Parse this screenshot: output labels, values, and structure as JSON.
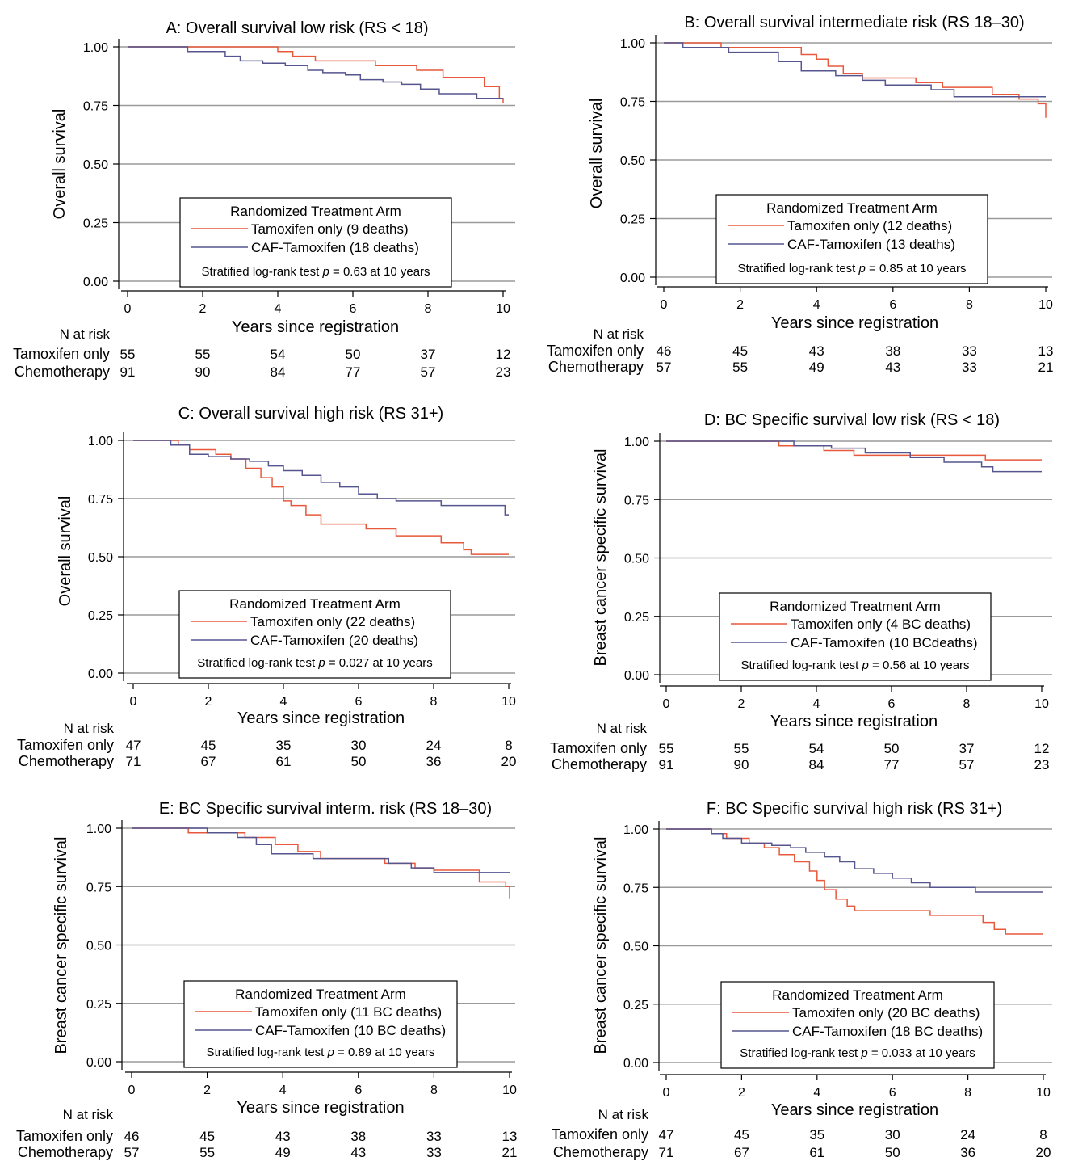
{
  "figure": {
    "x_axis_label": "Years since registration",
    "x_ticks": [
      "0",
      "2",
      "4",
      "6",
      "8",
      "10"
    ],
    "y_ticks": [
      "0.00",
      "0.25",
      "0.50",
      "0.75",
      "1.00"
    ],
    "at_risk_header": "N at risk",
    "legend_title": "Randomized Treatment Arm",
    "colors": {
      "tamoxifen": "#e8593c",
      "caf": "#55558f",
      "grid": "#9a9a9a"
    }
  },
  "chart_data": [
    {
      "id": "A",
      "type": "line",
      "title": "A: Overall survival low risk (RS < 18)",
      "ylabel": "Overall survival",
      "xlim": [
        0,
        10
      ],
      "ylim": [
        0,
        1
      ],
      "series": [
        {
          "name": "Tamoxifen only (9 deaths)",
          "key": "tamoxifen",
          "x": [
            0,
            4.0,
            4.4,
            5.0,
            6.6,
            7.7,
            8.4,
            9.5,
            9.9,
            10.0
          ],
          "y": [
            1.0,
            0.98,
            0.96,
            0.94,
            0.92,
            0.9,
            0.87,
            0.83,
            0.78,
            0.76
          ]
        },
        {
          "name": "CAF-Tamoxifen (18 deaths)",
          "key": "caf",
          "x": [
            0,
            1.6,
            2.6,
            3.0,
            3.6,
            4.2,
            4.8,
            5.2,
            5.8,
            6.2,
            6.8,
            7.3,
            7.8,
            8.3,
            9.3,
            10.0
          ],
          "y": [
            1.0,
            0.98,
            0.96,
            0.94,
            0.93,
            0.92,
            0.9,
            0.89,
            0.88,
            0.86,
            0.85,
            0.84,
            0.82,
            0.8,
            0.78,
            0.78
          ]
        }
      ],
      "legend": {
        "placement": "bottom-center",
        "entries": [
          "Tamoxifen only (9 deaths)",
          "CAF-Tamoxifen (18 deaths)"
        ],
        "note_prefix": "Stratified log-rank test ",
        "note_p": "p",
        "note_suffix": " = 0.63 at 10 years"
      },
      "at_risk": {
        "rows": [
          {
            "label": "Tamoxifen only",
            "values": [
              "55",
              "55",
              "54",
              "50",
              "37",
              "12"
            ]
          },
          {
            "label": "Chemotherapy",
            "values": [
              "91",
              "90",
              "84",
              "77",
              "57",
              "23"
            ]
          }
        ]
      }
    },
    {
      "id": "B",
      "type": "line",
      "title": "B: Overall survival intermediate risk (RS 18–30)",
      "ylabel": "Overall survival",
      "xlim": [
        0,
        10
      ],
      "ylim": [
        0,
        1
      ],
      "series": [
        {
          "name": "Tamoxifen only (12 deaths)",
          "key": "tamoxifen",
          "x": [
            0,
            1.5,
            3.6,
            4.0,
            4.3,
            4.7,
            5.2,
            6.6,
            7.3,
            8.6,
            9.3,
            9.8,
            10.0
          ],
          "y": [
            1.0,
            0.98,
            0.95,
            0.93,
            0.9,
            0.87,
            0.85,
            0.83,
            0.81,
            0.78,
            0.76,
            0.74,
            0.68
          ]
        },
        {
          "name": "CAF-Tamoxifen (13 deaths)",
          "key": "caf",
          "x": [
            0,
            0.5,
            1.7,
            3.0,
            3.6,
            4.5,
            5.2,
            5.8,
            7.0,
            7.6,
            10.0
          ],
          "y": [
            1.0,
            0.98,
            0.96,
            0.92,
            0.88,
            0.86,
            0.84,
            0.82,
            0.8,
            0.77,
            0.77
          ]
        }
      ],
      "legend": {
        "placement": "bottom-center",
        "entries": [
          "Tamoxifen only (12 deaths)",
          "CAF-Tamoxifen (13 deaths)"
        ],
        "note_prefix": "Stratified log-rank test ",
        "note_p": "p",
        "note_suffix": " = 0.85 at 10 years"
      },
      "at_risk": {
        "rows": [
          {
            "label": "Tamoxifen only",
            "values": [
              "46",
              "45",
              "43",
              "38",
              "33",
              "13"
            ]
          },
          {
            "label": "Chemotherapy",
            "values": [
              "57",
              "55",
              "49",
              "43",
              "33",
              "21"
            ]
          }
        ]
      }
    },
    {
      "id": "C",
      "type": "line",
      "title": "C: Overall survival high risk (RS 31+)",
      "ylabel": "Overall survival",
      "xlim": [
        0,
        10
      ],
      "ylim": [
        0,
        1
      ],
      "series": [
        {
          "name": "Tamoxifen only (22 deaths)",
          "key": "tamoxifen",
          "x": [
            0,
            1.2,
            1.5,
            2.2,
            2.6,
            3.0,
            3.4,
            3.7,
            4.0,
            4.2,
            4.6,
            5.0,
            6.2,
            7.0,
            8.2,
            8.8,
            9.0,
            10.0
          ],
          "y": [
            1.0,
            0.98,
            0.96,
            0.94,
            0.92,
            0.88,
            0.84,
            0.8,
            0.74,
            0.72,
            0.68,
            0.64,
            0.62,
            0.59,
            0.56,
            0.53,
            0.51,
            0.51
          ]
        },
        {
          "name": "CAF-Tamoxifen (20 deaths)",
          "key": "caf",
          "x": [
            0,
            1.0,
            1.5,
            2.0,
            2.6,
            3.1,
            3.6,
            4.0,
            4.5,
            5.0,
            5.5,
            6.0,
            6.5,
            7.0,
            8.2,
            9.9,
            10.0
          ],
          "y": [
            1.0,
            0.98,
            0.94,
            0.93,
            0.92,
            0.91,
            0.89,
            0.87,
            0.85,
            0.82,
            0.8,
            0.77,
            0.75,
            0.74,
            0.72,
            0.68,
            0.68
          ]
        }
      ],
      "legend": {
        "placement": "bottom-center",
        "entries": [
          "Tamoxifen only (22 deaths)",
          "CAF-Tamoxifen (20 deaths)"
        ],
        "note_prefix": "Stratified log-rank test ",
        "note_p": "p",
        "note_suffix": " = 0.027 at 10 years"
      },
      "at_risk": {
        "rows": [
          {
            "label": "Tamoxifen only",
            "values": [
              "47",
              "45",
              "35",
              "30",
              "24",
              "8"
            ]
          },
          {
            "label": "Chemotherapy",
            "values": [
              "71",
              "67",
              "61",
              "50",
              "36",
              "20"
            ]
          }
        ]
      }
    },
    {
      "id": "D",
      "type": "line",
      "title": "D: BC Specific survival low risk (RS < 18)",
      "ylabel": "Breast cancer specific survival",
      "xlim": [
        0,
        10
      ],
      "ylim": [
        0,
        1
      ],
      "series": [
        {
          "name": "Tamoxifen only (4 BC deaths)",
          "key": "tamoxifen",
          "x": [
            0,
            3.0,
            4.2,
            5.0,
            8.5,
            10.0
          ],
          "y": [
            1.0,
            0.98,
            0.96,
            0.94,
            0.92,
            0.92
          ]
        },
        {
          "name": "CAF-Tamoxifen (10 BCdeaths)",
          "key": "caf",
          "x": [
            0,
            3.4,
            4.4,
            5.3,
            6.5,
            7.4,
            8.4,
            8.7,
            10.0
          ],
          "y": [
            1.0,
            0.98,
            0.97,
            0.95,
            0.93,
            0.91,
            0.89,
            0.87,
            0.87
          ]
        }
      ],
      "legend": {
        "placement": "bottom-center",
        "entries": [
          "Tamoxifen only (4 BC deaths)",
          "CAF-Tamoxifen (10 BCdeaths)"
        ],
        "note_prefix": "Stratified log-rank test ",
        "note_p": "p",
        "note_suffix": " = 0.56 at 10 years"
      },
      "at_risk": {
        "rows": [
          {
            "label": "Tamoxifen only",
            "values": [
              "55",
              "55",
              "54",
              "50",
              "37",
              "12"
            ]
          },
          {
            "label": "Chemotherapy",
            "values": [
              "91",
              "90",
              "84",
              "77",
              "57",
              "23"
            ]
          }
        ]
      }
    },
    {
      "id": "E",
      "type": "line",
      "title": "E: BC Specific survival interm. risk (RS 18–30)",
      "ylabel": "Breast cancer specific survival",
      "xlim": [
        0,
        10
      ],
      "ylim": [
        0,
        1
      ],
      "series": [
        {
          "name": "Tamoxifen only (11 BC deaths)",
          "key": "tamoxifen",
          "x": [
            0,
            1.5,
            3.0,
            3.8,
            4.4,
            5.0,
            6.7,
            7.5,
            8.0,
            9.2,
            9.9,
            10.0
          ],
          "y": [
            1.0,
            0.98,
            0.96,
            0.93,
            0.9,
            0.87,
            0.85,
            0.83,
            0.82,
            0.77,
            0.75,
            0.7
          ]
        },
        {
          "name": "CAF-Tamoxifen (10 BC deaths)",
          "key": "caf",
          "x": [
            0,
            2.0,
            2.8,
            3.3,
            3.7,
            4.8,
            6.8,
            7.4,
            8.0,
            9.2,
            10.0
          ],
          "y": [
            1.0,
            0.98,
            0.96,
            0.93,
            0.89,
            0.87,
            0.85,
            0.83,
            0.81,
            0.81,
            0.81
          ]
        }
      ],
      "legend": {
        "placement": "bottom-center",
        "entries": [
          "Tamoxifen only (11 BC deaths)",
          "CAF-Tamoxifen (10 BC deaths)"
        ],
        "note_prefix": "Stratified log-rank test ",
        "note_p": "p",
        "note_suffix": " = 0.89 at 10 years"
      },
      "at_risk": {
        "rows": [
          {
            "label": "Tamoxifen only",
            "values": [
              "46",
              "45",
              "43",
              "38",
              "33",
              "13"
            ]
          },
          {
            "label": "Chemotherapy",
            "values": [
              "57",
              "55",
              "49",
              "43",
              "33",
              "21"
            ]
          }
        ]
      }
    },
    {
      "id": "F",
      "type": "line",
      "title": "F: BC Specific survival high risk (RS 31+)",
      "ylabel": "Breast cancer specific survival",
      "xlim": [
        0,
        10
      ],
      "ylim": [
        0,
        1
      ],
      "series": [
        {
          "name": "Tamoxifen only  (20 BC deaths)",
          "key": "tamoxifen",
          "x": [
            0,
            1.2,
            1.6,
            2.2,
            2.6,
            3.0,
            3.4,
            3.8,
            4.0,
            4.2,
            4.5,
            4.8,
            5.0,
            7.0,
            8.4,
            8.7,
            9.0,
            10.0
          ],
          "y": [
            1.0,
            0.98,
            0.96,
            0.94,
            0.92,
            0.89,
            0.86,
            0.82,
            0.78,
            0.74,
            0.7,
            0.67,
            0.65,
            0.63,
            0.6,
            0.57,
            0.55,
            0.55
          ]
        },
        {
          "name": "CAF-Tamoxifen (18 BC deaths)",
          "key": "caf",
          "x": [
            0,
            1.2,
            1.5,
            2.0,
            2.8,
            3.3,
            3.7,
            4.2,
            4.6,
            5.0,
            5.5,
            6.0,
            6.5,
            7.0,
            8.2,
            10.0
          ],
          "y": [
            1.0,
            0.98,
            0.96,
            0.94,
            0.93,
            0.92,
            0.9,
            0.88,
            0.86,
            0.83,
            0.81,
            0.79,
            0.77,
            0.75,
            0.73,
            0.73
          ]
        }
      ],
      "legend": {
        "placement": "bottom-center",
        "entries": [
          "Tamoxifen only  (20 BC deaths)",
          "CAF-Tamoxifen (18 BC deaths)"
        ],
        "note_prefix": "Stratified log-rank test ",
        "note_p": "p",
        "note_suffix": " = 0.033 at 10 years"
      },
      "at_risk": {
        "rows": [
          {
            "label": "Tamoxifen only",
            "values": [
              "47",
              "45",
              "35",
              "30",
              "24",
              "8"
            ]
          },
          {
            "label": "Chemotherapy",
            "values": [
              "71",
              "67",
              "61",
              "50",
              "36",
              "20"
            ]
          }
        ]
      }
    }
  ]
}
